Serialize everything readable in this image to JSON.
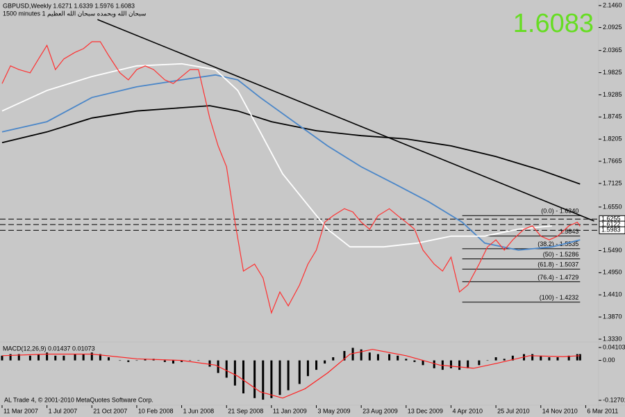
{
  "header": {
    "symbol_line": "GBPUSD,Weekly  1.6271 1.6339 1.5976 1.6083",
    "indicator_line": "1500 minutes 1 سبحان الله وبحمده سبحان الله العظيم",
    "price_display": "1.6083"
  },
  "footer": "AL Trade 4, © 2001-2010 MetaQuotes Software Corp.",
  "chart_data": [
    {
      "type": "line",
      "xlim": [
        -0.74,
        212.6
      ],
      "ylim": [
        1.333,
        2.146
      ],
      "xticks": [
        {
          "value": 0,
          "label": "11 Mar 2007"
        },
        {
          "value": 16,
          "label": "1 Jul 2007"
        },
        {
          "value": 32,
          "label": "21 Oct 2007"
        },
        {
          "value": 48,
          "label": "10 Feb 2008"
        },
        {
          "value": 64,
          "label": "1 Jun 2008"
        },
        {
          "value": 80,
          "label": "21 Sep 2008"
        },
        {
          "value": 96,
          "label": "11 Jan 2009"
        },
        {
          "value": 112,
          "label": "3 May 2009"
        },
        {
          "value": 128,
          "label": "23 Aug 2009"
        },
        {
          "value": 144,
          "label": "13 Dec 2009"
        },
        {
          "value": 160,
          "label": "4 Apr 2010"
        },
        {
          "value": 176,
          "label": "25 Jul 2010"
        },
        {
          "value": 192,
          "label": "14 Nov 2010"
        },
        {
          "value": 208,
          "label": "6 Mar 2011"
        }
      ],
      "yticks": [
        {
          "value": 2.146,
          "label": "2.1460"
        },
        2.0925,
        2.0365,
        1.9825,
        1.9285,
        1.8745,
        1.8205,
        1.7665,
        1.7125,
        {
          "value": 1.655,
          "label": "1.6550"
        },
        {
          "value": 1.549,
          "label": "1.5490"
        },
        {
          "value": 1.495,
          "label": "1.4950"
        },
        {
          "value": 1.441,
          "label": "1.4410"
        },
        {
          "value": 1.387,
          "label": "1.3870"
        },
        {
          "value": 1.333,
          "label": "1.3330"
        }
      ],
      "series": [
        {
          "x": [
            0,
            3,
            6,
            10,
            13,
            16,
            19,
            22,
            26,
            29,
            32,
            35,
            38,
            42,
            45,
            48,
            51,
            54,
            58,
            61,
            64,
            67,
            70,
            74,
            77,
            80,
            83,
            86,
            90,
            93,
            96,
            99,
            102,
            106,
            109,
            112,
            115,
            118,
            122,
            125,
            128,
            131,
            134,
            138,
            141,
            144,
            147,
            150,
            154,
            157,
            160,
            163,
            166,
            170,
            173,
            176,
            179,
            182,
            186,
            189,
            192,
            195,
            198,
            202,
            205,
            206
          ],
          "values": [
            1.956,
            1.999,
            1.99,
            1.982,
            2.016,
            2.049,
            1.99,
            2.016,
            2.032,
            2.041,
            2.058,
            2.058,
            2.024,
            1.982,
            1.965,
            1.99,
            1.999,
            1.99,
            1.965,
            1.956,
            1.973,
            1.99,
            1.99,
            1.872,
            1.804,
            1.753,
            1.618,
            1.499,
            1.516,
            1.482,
            1.397,
            1.448,
            1.414,
            1.465,
            1.516,
            1.55,
            1.618,
            1.634,
            1.651,
            1.643,
            1.618,
            1.601,
            1.634,
            1.651,
            1.634,
            1.618,
            1.601,
            1.55,
            1.516,
            1.499,
            1.533,
            1.448,
            1.465,
            1.516,
            1.558,
            1.575,
            1.55,
            1.575,
            1.601,
            1.609,
            1.584,
            1.575,
            1.584,
            1.609,
            1.618,
            1.6083
          ],
          "color": "#ff3030"
        },
        {
          "x": [
            0,
            16,
            32,
            48,
            64,
            76,
            84,
            92,
            100,
            108,
            116,
            124,
            136,
            148,
            160,
            172,
            184,
            196
          ],
          "values": [
            1.889,
            1.939,
            1.973,
            1.999,
            2.004,
            1.99,
            1.939,
            1.838,
            1.736,
            1.668,
            1.601,
            1.558,
            1.558,
            1.567,
            1.584,
            1.584,
            1.601,
            1.609
          ],
          "color": "#ffffff"
        },
        {
          "x": [
            0,
            16,
            32,
            48,
            64,
            76,
            84,
            92,
            104,
            116,
            128,
            140,
            152,
            164,
            172,
            184,
            196,
            206
          ],
          "values": [
            1.838,
            1.863,
            1.922,
            1.948,
            1.965,
            1.977,
            1.965,
            1.922,
            1.863,
            1.804,
            1.753,
            1.711,
            1.668,
            1.618,
            1.567,
            1.55,
            1.558,
            1.575
          ],
          "color": "#4a86c8"
        },
        {
          "x": [
            0,
            16,
            32,
            48,
            64,
            74,
            84,
            96,
            112,
            128,
            144,
            160,
            176,
            192,
            206
          ],
          "values": [
            1.812,
            1.838,
            1.872,
            1.889,
            1.897,
            1.902,
            1.889,
            1.863,
            1.841,
            1.829,
            1.821,
            1.804,
            1.778,
            1.745,
            1.711
          ],
          "color": "#000000"
        }
      ],
      "trendline": {
        "x": [
          34,
          211
        ],
        "values": [
          2.112,
          1.621
        ],
        "color": "#000000"
      },
      "fib_levels": {
        "x": [
          164,
          206
        ],
        "color": "#000000",
        "levels": [
          {
            "value": 1.634,
            "label": "(0.0) - 1.6340"
          },
          {
            "value": 1.5843,
            "label": "1.5843"
          },
          {
            "value": 1.5535,
            "label": "(38.2) - 1.5535"
          },
          {
            "value": 1.5286,
            "label": "(50) - 1.5286"
          },
          {
            "value": 1.5037,
            "label": "(61.8) - 1.5037"
          },
          {
            "value": 1.4729,
            "label": "(76.4) - 1.4729"
          },
          {
            "value": 1.4232,
            "label": "(100) - 1.4232"
          }
        ]
      },
      "price_levels": [
        {
          "value": 1.6255,
          "label": "1.6255"
        },
        {
          "value": 1.6122,
          "label": "1.6122"
        },
        {
          "value": 1.5983,
          "label": "1.5983"
        }
      ]
    },
    {
      "type": "bar",
      "title": "MACD(12,26,9) 0.01437 0.01073",
      "xlim": [
        -0.74,
        212.6
      ],
      "ylim": [
        -0.158,
        0.0543
      ],
      "yticks": [
        {
          "value": 0.04103,
          "label": "0.04103"
        },
        {
          "value": 0,
          "label": "0.00"
        },
        {
          "value": -0.12701,
          "label": "-0.12701"
        }
      ],
      "x": [
        0,
        3,
        6,
        10,
        13,
        16,
        19,
        22,
        26,
        29,
        32,
        35,
        38,
        42,
        45,
        48,
        51,
        54,
        58,
        61,
        64,
        67,
        70,
        74,
        77,
        80,
        83,
        86,
        90,
        93,
        96,
        99,
        102,
        106,
        109,
        112,
        115,
        118,
        122,
        125,
        128,
        131,
        134,
        138,
        141,
        144,
        147,
        150,
        154,
        157,
        160,
        163,
        166,
        170,
        173,
        176,
        179,
        182,
        186,
        189,
        192,
        195,
        198,
        202,
        205,
        206
      ],
      "values": [
        0.015,
        0.02,
        0.02,
        0.015,
        0.02,
        0.025,
        0.015,
        0.015,
        0.02,
        0.02,
        0.025,
        0.02,
        0.01,
        0,
        -0.005,
        0,
        0.005,
        0.005,
        -0.005,
        -0.01,
        -0.005,
        0,
        0,
        -0.02,
        -0.04,
        -0.055,
        -0.08,
        -0.105,
        -0.12,
        -0.125,
        -0.12,
        -0.11,
        -0.095,
        -0.075,
        -0.05,
        -0.03,
        -0.01,
        0.01,
        0.03,
        0.04,
        0.035,
        0.025,
        0.02,
        0.02,
        0.015,
        0.005,
        -0.005,
        -0.015,
        -0.025,
        -0.03,
        -0.025,
        -0.03,
        -0.025,
        -0.015,
        0,
        0.01,
        0.005,
        0.015,
        0.02,
        0.02,
        0.015,
        0.01,
        0.01,
        0.015,
        0.02,
        0.02
      ],
      "color": "#000000",
      "signal": {
        "x": [
          0,
          16,
          32,
          48,
          64,
          76,
          84,
          92,
          100,
          108,
          116,
          124,
          132,
          144,
          156,
          168,
          176,
          188,
          200,
          206
        ],
        "values": [
          0.015,
          0.02,
          0.02,
          0.005,
          0,
          -0.015,
          -0.05,
          -0.1,
          -0.12,
          -0.09,
          -0.04,
          0.02,
          0.035,
          0.015,
          -0.015,
          -0.025,
          -0.01,
          0.015,
          0.012,
          0.015
        ],
        "color": "#ff2020"
      }
    }
  ]
}
